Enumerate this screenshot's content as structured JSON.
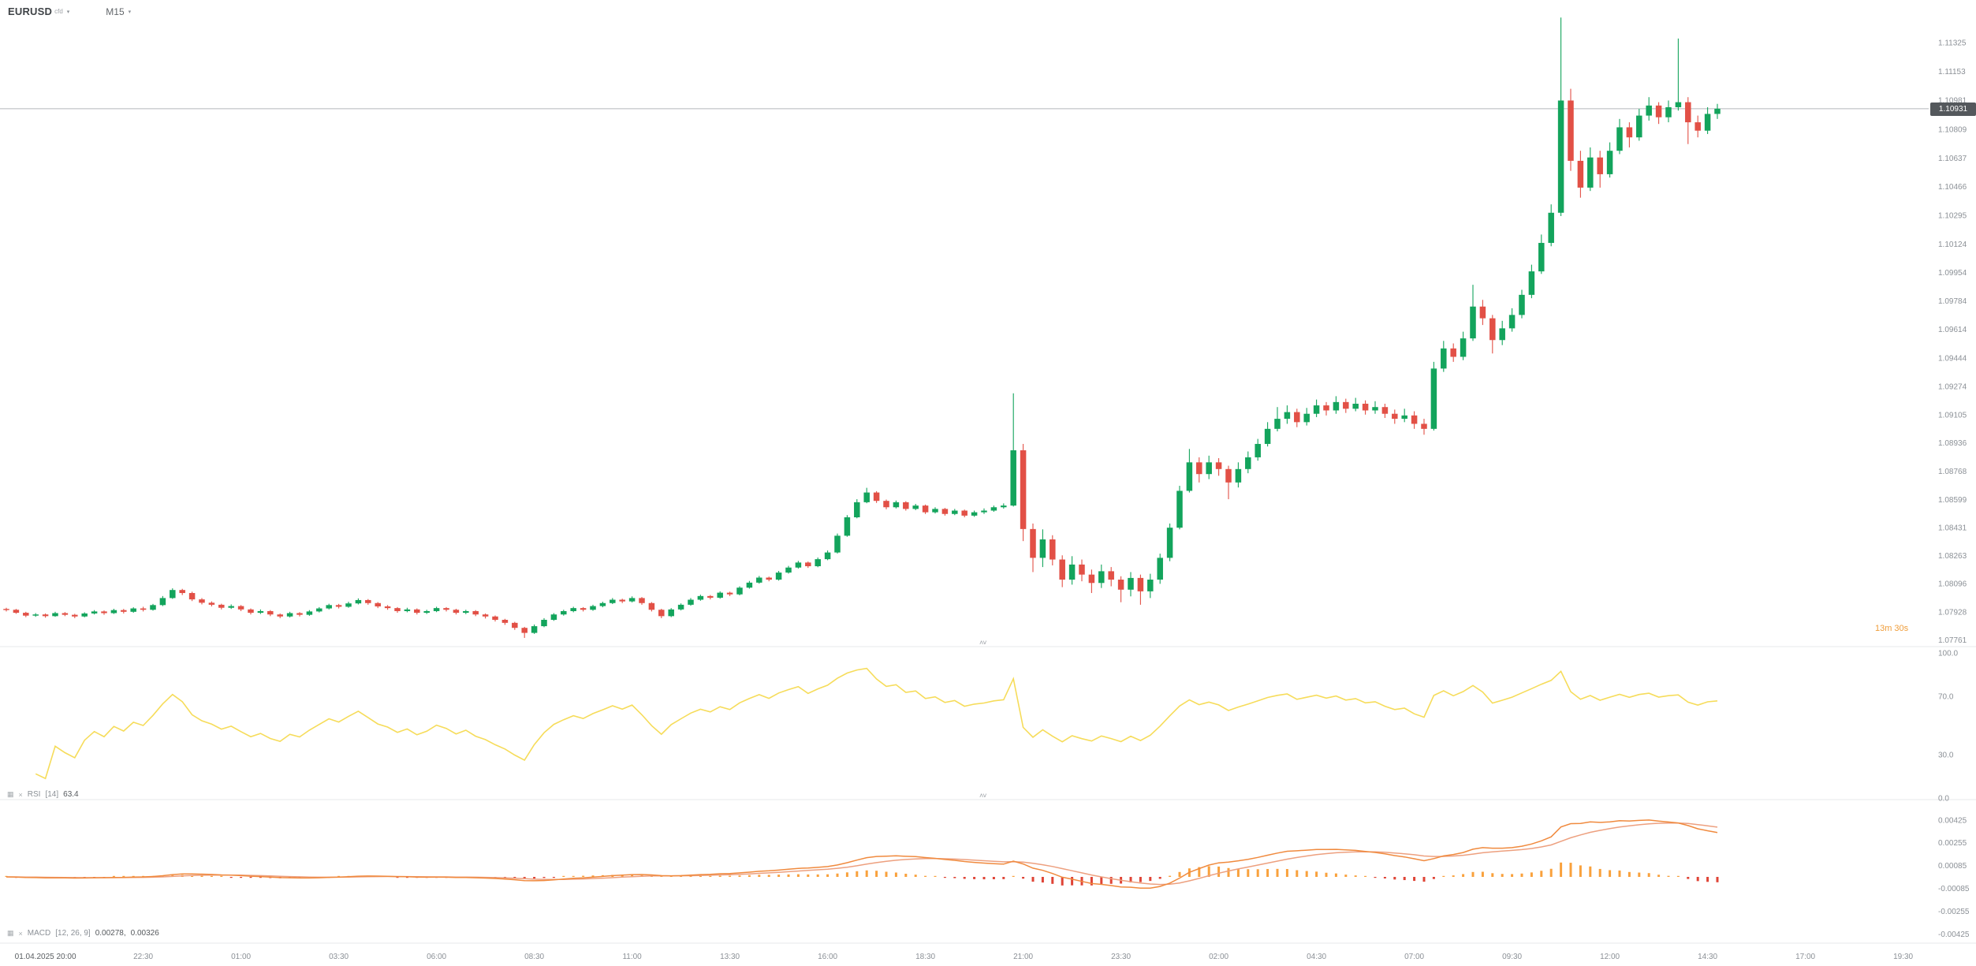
{
  "header": {
    "symbol": "EURUSD",
    "symbol_type": "cfd",
    "timeframe": "M15"
  },
  "current_price": {
    "value": "1.10931"
  },
  "countdown": {
    "minutes": "13m",
    "seconds": "30s"
  },
  "icons": {
    "caret_down": "▾",
    "grid": "▦",
    "close": "×",
    "chevron_up": "˄",
    "chevron_down": "˅"
  },
  "indicators": {
    "rsi": {
      "name": "RSI",
      "params": "[14]",
      "value": "63.4"
    },
    "macd": {
      "name": "MACD",
      "params": "[12, 26, 9]",
      "value1": "0.00278,",
      "value2": "0.00326"
    }
  },
  "colors": {
    "up": "#13a45c",
    "down": "#e25046",
    "rsi": "#f6dc5a",
    "macd_line": "#f08a3e",
    "macd_signal": "#eda07f",
    "hist_pos": "#f9a13c",
    "hist_neg": "#df4436",
    "price_line": "#b4b8bb",
    "badge_bg": "#54585c",
    "countdown": "#ef9d3a",
    "axis_text": "#8b9096"
  },
  "chart_data": {
    "type": "candlestick",
    "symbol": "EURUSD",
    "timeframe": "M15",
    "current_price": 1.10931,
    "price_axis_labels": [
      "1.11325",
      "1.11153",
      "1.10981",
      "1.10809",
      "1.10637",
      "1.10466",
      "1.10295",
      "1.10124",
      "1.09954",
      "1.09784",
      "1.09614",
      "1.09444",
      "1.09274",
      "1.09105",
      "1.08936",
      "1.08768",
      "1.08599",
      "1.08431",
      "1.08263",
      "1.08096",
      "1.07928",
      "1.07761"
    ],
    "time_axis_labels": [
      {
        "text": "01.04.2025  20:00",
        "idx": 4,
        "emphasis": true
      },
      {
        "text": "22:30",
        "idx": 14
      },
      {
        "text": "01:00",
        "idx": 24
      },
      {
        "text": "03:30",
        "idx": 34
      },
      {
        "text": "06:00",
        "idx": 44
      },
      {
        "text": "08:30",
        "idx": 54
      },
      {
        "text": "11:00",
        "idx": 64
      },
      {
        "text": "13:30",
        "idx": 74
      },
      {
        "text": "16:00",
        "idx": 84
      },
      {
        "text": "18:30",
        "idx": 94
      },
      {
        "text": "21:00",
        "idx": 104
      },
      {
        "text": "23:30",
        "idx": 114
      },
      {
        "text": "02:00",
        "idx": 124
      },
      {
        "text": "04:30",
        "idx": 134
      },
      {
        "text": "07:00",
        "idx": 144
      },
      {
        "text": "09:30",
        "idx": 154
      },
      {
        "text": "12:00",
        "idx": 164
      },
      {
        "text": "14:30",
        "idx": 174
      },
      {
        "text": "17:00",
        "idx": 184
      },
      {
        "text": "19:30",
        "idx": 194
      }
    ],
    "rsi_axis_labels": [
      {
        "text": "100.0",
        "value": 100
      },
      {
        "text": "70.0",
        "value": 70
      },
      {
        "text": "30.0",
        "value": 30
      },
      {
        "text": "0.0",
        "value": 0
      }
    ],
    "macd_axis_labels": [
      {
        "text": "0.00425",
        "value": 0.00425
      },
      {
        "text": "0.00255",
        "value": 0.00255
      },
      {
        "text": "0.00085",
        "value": 0.00085
      },
      {
        "text": "-0.00085",
        "value": -0.00085
      },
      {
        "text": "-0.00255",
        "value": -0.00255
      },
      {
        "text": "-0.00425",
        "value": -0.00425
      }
    ],
    "candles": [
      [
        1.07945,
        1.07952,
        1.0793,
        1.0794
      ],
      [
        1.0794,
        1.07945,
        1.07916,
        1.07922
      ],
      [
        1.07922,
        1.07928,
        1.07896,
        1.07905
      ],
      [
        1.07905,
        1.0792,
        1.07898,
        1.07912
      ],
      [
        1.07912,
        1.07918,
        1.07893,
        1.07902
      ],
      [
        1.07902,
        1.07928,
        1.07898,
        1.0792
      ],
      [
        1.0792,
        1.07926,
        1.07902,
        1.0791
      ],
      [
        1.0791,
        1.07916,
        1.0789,
        1.079
      ],
      [
        1.079,
        1.07925,
        1.07895,
        1.07918
      ],
      [
        1.07918,
        1.07938,
        1.07912,
        1.0793
      ],
      [
        1.0793,
        1.07936,
        1.0791,
        1.0792
      ],
      [
        1.0792,
        1.07946,
        1.07915,
        1.07938
      ],
      [
        1.07938,
        1.07945,
        1.07918,
        1.07928
      ],
      [
        1.07928,
        1.07955,
        1.07922,
        1.07948
      ],
      [
        1.07948,
        1.07958,
        1.0793,
        1.0794
      ],
      [
        1.0794,
        1.07975,
        1.07935,
        1.07968
      ],
      [
        1.07968,
        1.08022,
        1.07962,
        1.0801
      ],
      [
        1.0801,
        1.08068,
        1.08005,
        1.08058
      ],
      [
        1.08058,
        1.08065,
        1.08028,
        1.0804
      ],
      [
        1.0804,
        1.08048,
        1.07992,
        1.08002
      ],
      [
        1.08002,
        1.0801,
        1.07972,
        1.07982
      ],
      [
        1.07982,
        1.0799,
        1.0796,
        1.0797
      ],
      [
        1.0797,
        1.07976,
        1.07942,
        1.07952
      ],
      [
        1.07952,
        1.07972,
        1.07945,
        1.07962
      ],
      [
        1.07962,
        1.07968,
        1.07932,
        1.07942
      ],
      [
        1.07942,
        1.07948,
        1.07912,
        1.07922
      ],
      [
        1.07922,
        1.07942,
        1.07915,
        1.07932
      ],
      [
        1.07932,
        1.07938,
        1.07902,
        1.07912
      ],
      [
        1.07912,
        1.07918,
        1.0789,
        1.079
      ],
      [
        1.079,
        1.07928,
        1.07894,
        1.0792
      ],
      [
        1.0792,
        1.07926,
        1.079,
        1.0791
      ],
      [
        1.0791,
        1.07938,
        1.07904,
        1.0793
      ],
      [
        1.0793,
        1.07956,
        1.07924,
        1.07948
      ],
      [
        1.07948,
        1.07976,
        1.07942,
        1.07968
      ],
      [
        1.07968,
        1.07975,
        1.07948,
        1.07958
      ],
      [
        1.07958,
        1.07988,
        1.07952,
        1.07978
      ],
      [
        1.07978,
        1.08008,
        1.07972,
        1.07998
      ],
      [
        1.07998,
        1.08004,
        1.0797,
        1.0798
      ],
      [
        1.0798,
        1.07986,
        1.0795,
        1.0796
      ],
      [
        1.0796,
        1.07968,
        1.0794,
        1.0795
      ],
      [
        1.0795,
        1.07956,
        1.07922,
        1.07932
      ],
      [
        1.07932,
        1.07952,
        1.07925,
        1.07942
      ],
      [
        1.07942,
        1.07948,
        1.07912,
        1.07922
      ],
      [
        1.07922,
        1.0794,
        1.07915,
        1.07932
      ],
      [
        1.07932,
        1.07958,
        1.07926,
        1.0795
      ],
      [
        1.0795,
        1.07956,
        1.0793,
        1.0794
      ],
      [
        1.0794,
        1.07946,
        1.07912,
        1.07922
      ],
      [
        1.07922,
        1.0794,
        1.07914,
        1.07932
      ],
      [
        1.07932,
        1.07938,
        1.07902,
        1.07912
      ],
      [
        1.07912,
        1.07918,
        1.07888,
        1.079
      ],
      [
        1.079,
        1.07906,
        1.0787,
        1.0788
      ],
      [
        1.0788,
        1.07886,
        1.0785,
        1.07862
      ],
      [
        1.07862,
        1.07868,
        1.0782,
        1.07832
      ],
      [
        1.07832,
        1.07838,
        1.07772,
        1.07802
      ],
      [
        1.07802,
        1.07852,
        1.07796,
        1.07842
      ],
      [
        1.07842,
        1.0789,
        1.07836,
        1.0788
      ],
      [
        1.0788,
        1.0792,
        1.07874,
        1.07912
      ],
      [
        1.07912,
        1.0794,
        1.07905,
        1.07932
      ],
      [
        1.07932,
        1.07958,
        1.07925,
        1.0795
      ],
      [
        1.0795,
        1.07956,
        1.0793,
        1.0794
      ],
      [
        1.0794,
        1.0797,
        1.07934,
        1.07962
      ],
      [
        1.07962,
        1.07988,
        1.07955,
        1.0798
      ],
      [
        1.0798,
        1.0801,
        1.07974,
        1.08
      ],
      [
        1.08,
        1.08006,
        1.0798,
        1.0799
      ],
      [
        1.0799,
        1.0802,
        1.07984,
        1.0801
      ],
      [
        1.0801,
        1.08016,
        1.0797,
        1.0798
      ],
      [
        1.0798,
        1.07986,
        1.0793,
        1.0794
      ],
      [
        1.0794,
        1.07946,
        1.0789,
        1.07902
      ],
      [
        1.07902,
        1.0795,
        1.07896,
        1.07942
      ],
      [
        1.07942,
        1.07978,
        1.07936,
        1.0797
      ],
      [
        1.0797,
        1.0801,
        1.07964,
        1.08
      ],
      [
        1.08,
        1.0803,
        1.07994,
        1.08022
      ],
      [
        1.08022,
        1.08028,
        1.08002,
        1.08012
      ],
      [
        1.08012,
        1.0805,
        1.08006,
        1.08042
      ],
      [
        1.08042,
        1.08048,
        1.08022,
        1.08032
      ],
      [
        1.08032,
        1.0808,
        1.08026,
        1.08072
      ],
      [
        1.08072,
        1.08112,
        1.08066,
        1.08102
      ],
      [
        1.08102,
        1.08142,
        1.08096,
        1.08132
      ],
      [
        1.08132,
        1.08138,
        1.0811,
        1.0812
      ],
      [
        1.0812,
        1.08172,
        1.08114,
        1.08162
      ],
      [
        1.08162,
        1.08202,
        1.08156,
        1.08192
      ],
      [
        1.08192,
        1.08232,
        1.08186,
        1.08222
      ],
      [
        1.08222,
        1.08228,
        1.0819,
        1.082
      ],
      [
        1.082,
        1.08252,
        1.08194,
        1.08242
      ],
      [
        1.08242,
        1.08294,
        1.08236,
        1.08282
      ],
      [
        1.08282,
        1.08395,
        1.08276,
        1.08382
      ],
      [
        1.08382,
        1.08505,
        1.08376,
        1.08492
      ],
      [
        1.08492,
        1.086,
        1.08486,
        1.08582
      ],
      [
        1.08582,
        1.08668,
        1.08576,
        1.0864
      ],
      [
        1.0864,
        1.08648,
        1.08578,
        1.0859
      ],
      [
        1.0859,
        1.08598,
        1.0854,
        1.08552
      ],
      [
        1.08552,
        1.08592,
        1.08545,
        1.08582
      ],
      [
        1.08582,
        1.08588,
        1.08532,
        1.08542
      ],
      [
        1.08542,
        1.08572,
        1.08535,
        1.08562
      ],
      [
        1.08562,
        1.08568,
        1.08512,
        1.08522
      ],
      [
        1.08522,
        1.08552,
        1.08515,
        1.08542
      ],
      [
        1.08542,
        1.08548,
        1.08502,
        1.08512
      ],
      [
        1.08512,
        1.08542,
        1.08505,
        1.08532
      ],
      [
        1.08532,
        1.08538,
        1.08492,
        1.08502
      ],
      [
        1.08502,
        1.08532,
        1.08495,
        1.08522
      ],
      [
        1.08522,
        1.08545,
        1.08512,
        1.08532
      ],
      [
        1.08532,
        1.08562,
        1.08525,
        1.08552
      ],
      [
        1.08552,
        1.08575,
        1.08544,
        1.08562
      ],
      [
        1.08562,
        1.09232,
        1.08556,
        1.08892
      ],
      [
        1.08892,
        1.0893,
        1.0835,
        1.08422
      ],
      [
        1.08422,
        1.08455,
        1.08165,
        1.0825
      ],
      [
        1.0825,
        1.0842,
        1.08195,
        1.0836
      ],
      [
        1.0836,
        1.08385,
        1.08205,
        1.0824
      ],
      [
        1.0824,
        1.08265,
        1.08075,
        1.0812
      ],
      [
        1.0812,
        1.0826,
        1.0809,
        1.0821
      ],
      [
        1.0821,
        1.0824,
        1.0811,
        1.0815
      ],
      [
        1.0815,
        1.0818,
        1.0804,
        1.081
      ],
      [
        1.081,
        1.0821,
        1.0807,
        1.0817
      ],
      [
        1.0817,
        1.08195,
        1.0808,
        1.0812
      ],
      [
        1.0812,
        1.0814,
        1.07985,
        1.0806
      ],
      [
        1.0806,
        1.08165,
        1.0802,
        1.0813
      ],
      [
        1.0813,
        1.0815,
        1.0797,
        1.0805
      ],
      [
        1.0805,
        1.08155,
        1.0801,
        1.0812
      ],
      [
        1.0812,
        1.08275,
        1.08095,
        1.0825
      ],
      [
        1.0825,
        1.08455,
        1.0823,
        1.0843
      ],
      [
        1.0843,
        1.0868,
        1.0842,
        1.0865
      ],
      [
        1.0865,
        1.089,
        1.0864,
        1.0882
      ],
      [
        1.0882,
        1.0885,
        1.087,
        1.0875
      ],
      [
        1.0875,
        1.0886,
        1.0872,
        1.0882
      ],
      [
        1.0882,
        1.08845,
        1.0874,
        1.0878
      ],
      [
        1.0878,
        1.088,
        1.086,
        1.087
      ],
      [
        1.087,
        1.0882,
        1.0867,
        1.0878
      ],
      [
        1.0878,
        1.08885,
        1.08755,
        1.0885
      ],
      [
        1.0885,
        1.0896,
        1.0883,
        1.0893
      ],
      [
        1.0893,
        1.0906,
        1.08915,
        1.0902
      ],
      [
        1.0902,
        1.0915,
        1.09005,
        1.0908
      ],
      [
        1.0908,
        1.0916,
        1.0905,
        1.0912
      ],
      [
        1.0912,
        1.0914,
        1.0903,
        1.0906
      ],
      [
        1.0906,
        1.09145,
        1.0904,
        1.0911
      ],
      [
        1.0911,
        1.09195,
        1.0909,
        1.0916
      ],
      [
        1.0916,
        1.0918,
        1.091,
        1.0913
      ],
      [
        1.0913,
        1.09215,
        1.0911,
        1.0918
      ],
      [
        1.0918,
        1.092,
        1.09115,
        1.0914
      ],
      [
        1.0914,
        1.09205,
        1.09125,
        1.0917
      ],
      [
        1.0917,
        1.0919,
        1.09105,
        1.0913
      ],
      [
        1.0913,
        1.09185,
        1.0911,
        1.0915
      ],
      [
        1.0915,
        1.0917,
        1.09085,
        1.0911
      ],
      [
        1.0911,
        1.09135,
        1.0905,
        1.0908
      ],
      [
        1.0908,
        1.0914,
        1.0906,
        1.091
      ],
      [
        1.091,
        1.09125,
        1.0902,
        1.0905
      ],
      [
        1.0905,
        1.0908,
        1.08985,
        1.0902
      ],
      [
        1.0902,
        1.0942,
        1.0901,
        1.0938
      ],
      [
        1.0938,
        1.09545,
        1.0936,
        1.095
      ],
      [
        1.095,
        1.0953,
        1.0942,
        1.0945
      ],
      [
        1.0945,
        1.096,
        1.0943,
        1.0956
      ],
      [
        1.0956,
        1.0988,
        1.09545,
        1.0975
      ],
      [
        1.0975,
        1.0979,
        1.0964,
        1.0968
      ],
      [
        1.0968,
        1.097,
        1.0947,
        1.0955
      ],
      [
        1.0955,
        1.09665,
        1.0952,
        1.0962
      ],
      [
        1.0962,
        1.0974,
        1.096,
        1.097
      ],
      [
        1.097,
        1.0985,
        1.0968,
        1.0982
      ],
      [
        1.0982,
        1.1,
        1.098,
        1.0996
      ],
      [
        1.0996,
        1.1018,
        1.09945,
        1.1013
      ],
      [
        1.1013,
        1.1036,
        1.1011,
        1.1031
      ],
      [
        1.1031,
        1.11475,
        1.1029,
        1.1098
      ],
      [
        1.1098,
        1.1105,
        1.1056,
        1.1062
      ],
      [
        1.1062,
        1.1068,
        1.104,
        1.1046
      ],
      [
        1.1046,
        1.107,
        1.1044,
        1.1064
      ],
      [
        1.1064,
        1.1068,
        1.1046,
        1.1054
      ],
      [
        1.1054,
        1.1073,
        1.1052,
        1.1068
      ],
      [
        1.1068,
        1.1087,
        1.1066,
        1.1082
      ],
      [
        1.1082,
        1.1085,
        1.107,
        1.1076
      ],
      [
        1.1076,
        1.1093,
        1.1074,
        1.1089
      ],
      [
        1.1089,
        1.11,
        1.1086,
        1.1095
      ],
      [
        1.1095,
        1.1097,
        1.1084,
        1.1088
      ],
      [
        1.1088,
        1.1098,
        1.1085,
        1.1094
      ],
      [
        1.1094,
        1.1135,
        1.1092,
        1.1097
      ],
      [
        1.1097,
        1.11,
        1.1072,
        1.1085
      ],
      [
        1.1085,
        1.1089,
        1.1076,
        1.108
      ],
      [
        1.108,
        1.1094,
        1.1078,
        1.109
      ],
      [
        1.109,
        1.1096,
        1.1087,
        1.10931
      ]
    ]
  }
}
